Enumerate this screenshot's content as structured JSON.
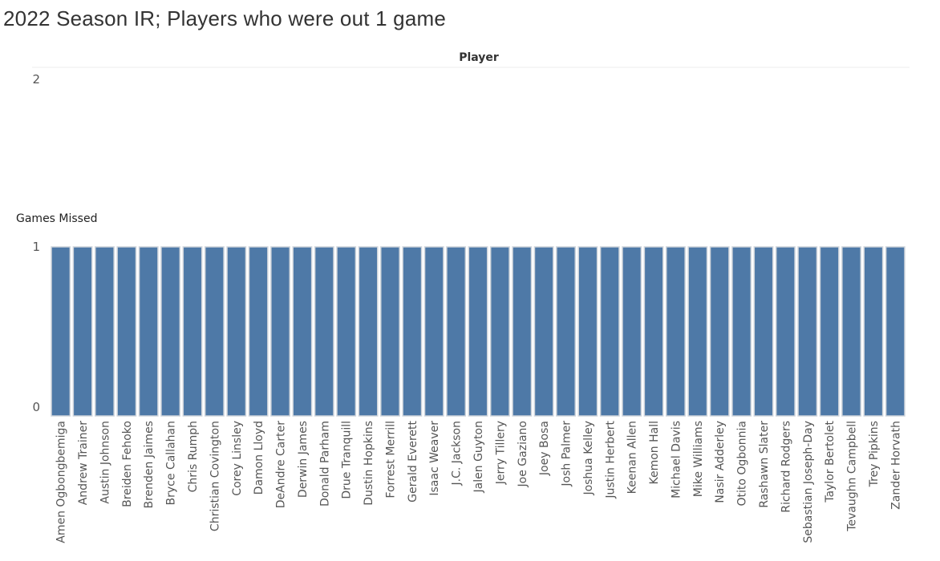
{
  "title": "2022 Season IR; Players who were out 1 game",
  "chart_data": {
    "type": "bar",
    "title": "2022 Season IR; Players who were out 1 game",
    "xlabel": "Player",
    "ylabel": "Games Missed",
    "ylim": [
      0,
      2
    ],
    "yticks": [
      "0",
      "1",
      "2"
    ],
    "color": "#4e79a7",
    "grid": false,
    "categories": [
      "Amen Ogbongbemiga",
      "Andrew Trainer",
      "Austin Johnson",
      "Breiden Fehoko",
      "Brenden Jaimes",
      "Bryce Callahan",
      "Chris Rumph",
      "Christian Covington",
      "Corey Linsley",
      "Damon Lloyd",
      "DeAndre Carter",
      "Derwin James",
      "Donald Parham",
      "Drue Tranquill",
      "Dustin Hopkins",
      "Forrest Merrill",
      "Gerald Everett",
      "Isaac Weaver",
      "J.C. Jackson",
      "Jalen Guyton",
      "Jerry Tillery",
      "Joe Gaziano",
      "Joey Bosa",
      "Josh Palmer",
      "Joshua Kelley",
      "Justin Herbert",
      "Keenan Allen",
      "Kemon Hall",
      "Michael Davis",
      "Mike Williams",
      "Nasir Adderley",
      "Otito Ogbonnia",
      "Rashawn Slater",
      "Richard Rodgers",
      "Sebastian Joseph-Day",
      "Taylor Bertolet",
      "Tevaughn Campbell",
      "Trey Pipkins",
      "Zander Horvath"
    ],
    "values": [
      1,
      1,
      1,
      1,
      1,
      1,
      1,
      1,
      1,
      1,
      1,
      1,
      1,
      1,
      1,
      1,
      1,
      1,
      1,
      1,
      1,
      1,
      1,
      1,
      1,
      1,
      1,
      1,
      1,
      1,
      1,
      1,
      1,
      1,
      1,
      1,
      1,
      1,
      1
    ]
  }
}
